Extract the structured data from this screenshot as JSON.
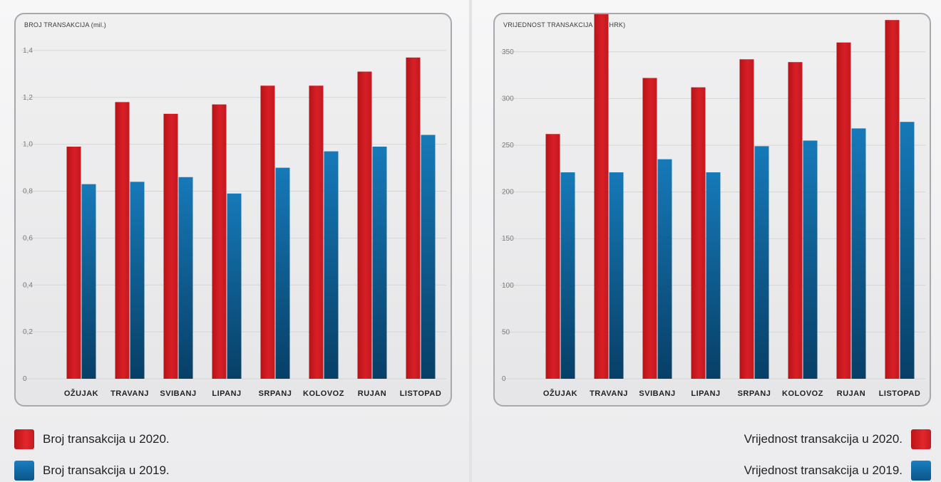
{
  "colors": {
    "series_2020": "#d71f26",
    "series_2019": "#0f6aa8"
  },
  "chart_data": [
    {
      "type": "bar",
      "title": "BROJ TRANSAKCIJA (mil.)",
      "categories": [
        "OŽUJAK",
        "TRAVANJ",
        "SVIBANJ",
        "LIPANJ",
        "SRPANJ",
        "KOLOVOZ",
        "RUJAN",
        "LISTOPAD"
      ],
      "series": [
        {
          "name": "Broj transakcija u 2020.",
          "values": [
            0.99,
            1.18,
            1.13,
            1.17,
            1.25,
            1.25,
            1.31,
            1.37
          ]
        },
        {
          "name": "Broj transakcija u 2019.",
          "values": [
            0.83,
            0.84,
            0.86,
            0.79,
            0.9,
            0.97,
            0.99,
            1.04
          ]
        }
      ],
      "ylim": [
        0,
        1.5
      ],
      "yticks": [
        "0",
        "0,2",
        "0,4",
        "0,6",
        "0,8",
        "1,0",
        "1,2",
        "1,4"
      ],
      "ytick_values": [
        0,
        0.2,
        0.4,
        0.6,
        0.8,
        1.0,
        1.2,
        1.4
      ],
      "grid": true,
      "legend": "bottom-left"
    },
    {
      "type": "bar",
      "title": "VRIJEDNOST TRANSAKCIJA (mil. HRK)",
      "categories": [
        "OŽUJAK",
        "TRAVANJ",
        "SVIBANJ",
        "LIPANJ",
        "SRPANJ",
        "KOLOVOZ",
        "RUJAN",
        "LISTOPAD"
      ],
      "series": [
        {
          "name": "Vrijednost transakcija u 2020.",
          "values": [
            262,
            392,
            322,
            312,
            342,
            339,
            360,
            384
          ]
        },
        {
          "name": "Vrijednost transakcija u 2019.",
          "values": [
            221,
            221,
            235,
            221,
            249,
            255,
            268,
            275
          ]
        }
      ],
      "ylim": [
        0,
        375
      ],
      "yticks": [
        "0",
        "50",
        "100",
        "150",
        "200",
        "250",
        "300",
        "350"
      ],
      "ytick_values": [
        0,
        50,
        100,
        150,
        200,
        250,
        300,
        350
      ],
      "grid": true,
      "legend": "bottom-right"
    }
  ]
}
